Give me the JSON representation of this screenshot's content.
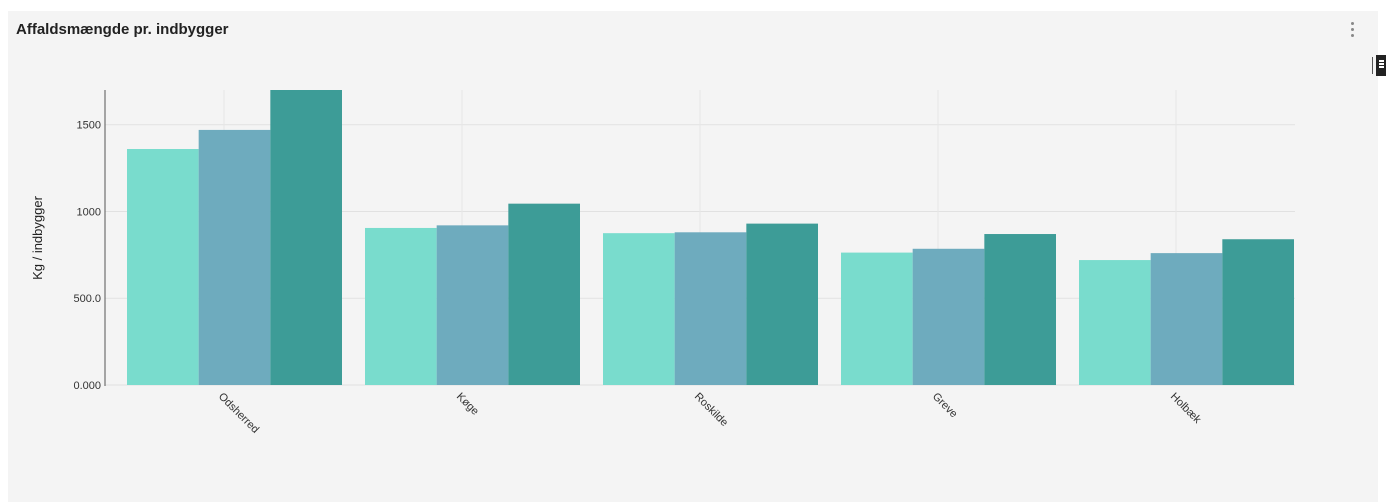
{
  "panel": {
    "title": "Affaldsmængde pr. indbygger",
    "menu_icon": "more-vertical-icon",
    "edge_icon": "panel-toggle-icon"
  },
  "chart_data": {
    "type": "bar",
    "title": "Affaldsmængde pr. indbygger",
    "xlabel": "",
    "ylabel": "Kg / indbygger",
    "categories": [
      "Odsherred",
      "Køge",
      "Roskilde",
      "Greve",
      "Holbæk"
    ],
    "series": [
      {
        "color": "#79dccd",
        "values": [
          1360,
          905,
          875,
          763,
          720
        ]
      },
      {
        "color": "#6eabbe",
        "values": [
          1470,
          920,
          880,
          785,
          760
        ]
      },
      {
        "color": "#3d9c97",
        "values": [
          1700,
          1045,
          930,
          870,
          840
        ]
      }
    ],
    "yticks": [
      {
        "value": 0,
        "label": "0.000"
      },
      {
        "value": 500,
        "label": "500.0"
      },
      {
        "value": 1000,
        "label": "1000"
      },
      {
        "value": 1500,
        "label": "1500"
      }
    ],
    "ylim": [
      0,
      1700
    ],
    "grid": true,
    "legend": "none"
  }
}
